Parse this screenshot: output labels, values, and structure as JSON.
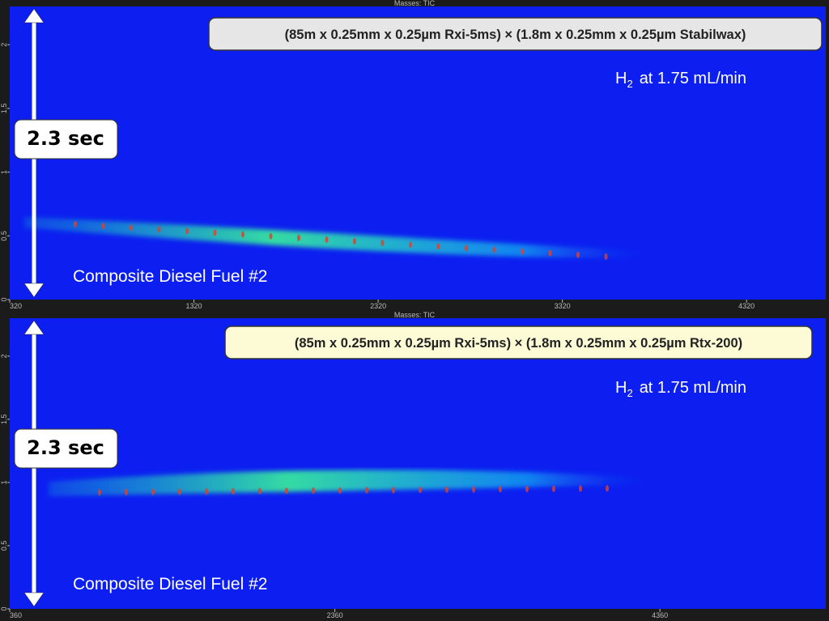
{
  "chart_data": [
    {
      "type": "contour",
      "title": "Masses: TIC",
      "xlim": [
        320,
        4750
      ],
      "xticks": [
        320,
        1320,
        2320,
        3320,
        4320
      ],
      "ylim": [
        0,
        2.3
      ],
      "yticks": [
        0,
        0.5,
        1,
        1.5,
        2
      ],
      "annotation": "(85m x 0.25mm x 0.25µm Rxi-5ms) × (1.8m x 0.25mm x 0.25µm Stabilwax)",
      "carrier": [
        "H",
        "2",
        "at 1.75 mL/min"
      ],
      "span_label": "2.3 sec",
      "sample": "Composite Diesel Fuel #2"
    },
    {
      "type": "contour",
      "title": "Masses: TIC",
      "xlim": [
        360,
        5380
      ],
      "xticks": [
        360,
        2360,
        4360
      ],
      "ylim": [
        0,
        2.3
      ],
      "yticks": [
        0,
        0.5,
        1,
        1.5,
        2
      ],
      "annotation": "(85m x 0.25mm x 0.25µm Rxi-5ms) × (1.8m x 0.25mm x 0.25µm Rtx-200)",
      "carrier": [
        "H",
        "2",
        "at 1.75 mL/min"
      ],
      "span_label": "2.3 sec",
      "sample": "Composite Diesel Fuel #2"
    }
  ]
}
